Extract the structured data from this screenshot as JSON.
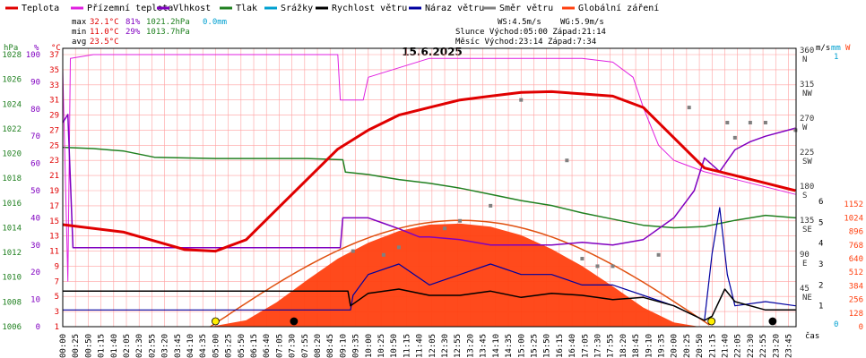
{
  "chart_data": {
    "type": "line",
    "title": "15.6.2025",
    "xlabel": "čas",
    "legend": [
      {
        "label": "Teplota",
        "color": "#e00000"
      },
      {
        "label": "Přízemní teplota",
        "color": "#e020e0"
      },
      {
        "label": "Vlhkost",
        "color": "#8000c0"
      },
      {
        "label": "Tlak",
        "color": "#208020"
      },
      {
        "label": "Srážky",
        "color": "#00a0d0"
      },
      {
        "label": "Rychlost větru",
        "color": "#000000"
      },
      {
        "label": "Náraz větru",
        "color": "#0000a0"
      },
      {
        "label": "Směr větru",
        "color": "#808080"
      },
      {
        "label": "Globální záření",
        "color": "#ff4010"
      }
    ],
    "stats": {
      "max_label": "max",
      "min_label": "min",
      "avg_label": "avg",
      "max_temp": "32.1°C",
      "max_hum": "81%",
      "max_press": "1021.2hPa",
      "max_rain": "0.0mm",
      "min_temp": "11.0°C",
      "min_hum": "29%",
      "min_press": "1013.7hPa",
      "avg_temp": "23.5°C"
    },
    "info": {
      "ws": "WS:4.5m/s",
      "wg": "WG:5.9m/s",
      "sun": "Slunce Východ:05:00  Západ:21:14",
      "moon": "Měsíc  Východ:23:14  Západ:7:34"
    },
    "axes_labels": {
      "hpa": "hPa",
      "pct": "%",
      "degc": "°C",
      "ms": "m/s",
      "mm": "mm",
      "w": "W"
    },
    "pressure_ticks": [
      "1006",
      "1008",
      "1010",
      "1012",
      "1014",
      "1016",
      "1018",
      "1020",
      "1022",
      "1024",
      "1026",
      "1028"
    ],
    "percent_ticks": [
      "0",
      "10",
      "20",
      "30",
      "40",
      "50",
      "60",
      "70",
      "80",
      "90",
      "100"
    ],
    "temp_ticks": [
      "1",
      "3",
      "5",
      "7",
      "9",
      "11",
      "13",
      "15",
      "17",
      "19",
      "21",
      "23",
      "25",
      "27",
      "29",
      "31",
      "33",
      "35",
      "37"
    ],
    "dir_ticks": [
      {
        "deg": "45",
        "dir": "NE"
      },
      {
        "deg": "90",
        "dir": "E"
      },
      {
        "deg": "135",
        "dir": "SE"
      },
      {
        "deg": "180",
        "dir": "S"
      },
      {
        "deg": "225",
        "dir": "SW"
      },
      {
        "deg": "270",
        "dir": "W"
      },
      {
        "deg": "315",
        "dir": "NW"
      },
      {
        "deg": "360",
        "dir": "N"
      }
    ],
    "wind_ticks": [
      "1",
      "2",
      "3",
      "4",
      "5",
      "6"
    ],
    "rain_ticks": [
      "0",
      "1"
    ],
    "rad_ticks": [
      "0",
      "128",
      "256",
      "384",
      "512",
      "640",
      "768",
      "896",
      "1024",
      "1152"
    ],
    "x_ticks": [
      "00:00",
      "00:25",
      "00:50",
      "01:15",
      "01:40",
      "02:05",
      "02:30",
      "02:55",
      "03:20",
      "03:45",
      "04:10",
      "04:35",
      "05:00",
      "05:25",
      "05:50",
      "06:15",
      "06:40",
      "07:05",
      "07:30",
      "07:55",
      "08:20",
      "08:45",
      "09:10",
      "09:35",
      "10:00",
      "10:25",
      "10:50",
      "11:15",
      "11:40",
      "12:05",
      "12:30",
      "12:55",
      "13:20",
      "13:45",
      "14:10",
      "14:35",
      "15:00",
      "15:25",
      "15:50",
      "16:15",
      "16:40",
      "17:05",
      "17:30",
      "17:55",
      "18:20",
      "18:45",
      "19:10",
      "19:35",
      "20:00",
      "20:25",
      "20:50",
      "21:15",
      "21:40",
      "22:05",
      "22:30",
      "22:55",
      "23:20",
      "23:45"
    ],
    "xlim": [
      "00:00",
      "24:00"
    ],
    "temperature": {
      "unit": "°C",
      "x": [
        "00:00",
        "02:00",
        "04:00",
        "05:00",
        "06:00",
        "07:00",
        "08:00",
        "09:00",
        "10:00",
        "11:00",
        "12:00",
        "13:00",
        "14:00",
        "15:00",
        "16:00",
        "17:00",
        "18:00",
        "19:00",
        "20:00",
        "20:30",
        "21:00",
        "22:00",
        "23:00",
        "23:59"
      ],
      "y": [
        14.5,
        13.5,
        11.2,
        11.0,
        12.5,
        16.5,
        20.5,
        24.5,
        27.0,
        29.0,
        30.0,
        31.0,
        31.5,
        32.0,
        32.1,
        31.8,
        31.5,
        30.0,
        26.0,
        24.0,
        22.0,
        21.0,
        20.0,
        19.0
      ]
    },
    "ground_temperature": {
      "unit": "°C",
      "x": [
        "00:00",
        "00:10",
        "00:15",
        "01:00",
        "08:00",
        "09:00",
        "09:05",
        "09:50",
        "10:00",
        "12:00",
        "14:00",
        "17:00",
        "18:00",
        "18:40",
        "19:00",
        "19:30",
        "20:00",
        "21:00",
        "22:00",
        "23:00",
        "23:59"
      ],
      "y": [
        35,
        7,
        36.5,
        37,
        37,
        37,
        31,
        31,
        34,
        36.5,
        36.5,
        36.5,
        36,
        34,
        30,
        25,
        23,
        21.5,
        20.5,
        19.5,
        18.5
      ]
    },
    "humidity": {
      "unit": "%",
      "x": [
        "00:00",
        "00:10",
        "00:20",
        "01:00",
        "04:00",
        "08:00",
        "09:05",
        "09:10",
        "10:00",
        "10:30",
        "11:00",
        "11:40",
        "12:00",
        "13:00",
        "14:00",
        "15:00",
        "16:00",
        "17:00",
        "18:00",
        "19:00",
        "20:00",
        "20:40",
        "21:00",
        "21:30",
        "22:00",
        "22:30",
        "23:00",
        "23:59"
      ],
      "y": [
        75,
        78,
        29,
        29,
        29,
        29,
        29,
        40,
        40,
        38,
        36,
        33,
        33,
        32,
        30,
        30,
        30,
        31,
        30,
        32,
        40,
        50,
        62,
        57,
        65,
        68,
        70,
        73
      ]
    },
    "pressure": {
      "unit": "hPa",
      "x": [
        "00:00",
        "01:00",
        "02:00",
        "03:00",
        "05:00",
        "08:00",
        "09:10",
        "09:15",
        "10:00",
        "11:00",
        "12:00",
        "13:00",
        "14:00",
        "15:00",
        "16:00",
        "17:00",
        "18:00",
        "19:00",
        "20:00",
        "21:00",
        "22:00",
        "23:00",
        "23:59"
      ],
      "y": [
        1020.5,
        1020.4,
        1020.2,
        1019.7,
        1019.6,
        1019.6,
        1019.5,
        1018.5,
        1018.3,
        1017.9,
        1017.6,
        1017.2,
        1016.7,
        1016.2,
        1015.8,
        1015.2,
        1014.7,
        1014.2,
        1014.0,
        1014.1,
        1014.6,
        1015.0,
        1014.8
      ]
    },
    "rain_mm": 0.0,
    "wind_speed": {
      "unit": "m/s",
      "x": [
        "00:00",
        "09:20",
        "09:25",
        "10:00",
        "11:00",
        "12:00",
        "13:00",
        "14:00",
        "15:00",
        "16:00",
        "17:00",
        "18:00",
        "19:00",
        "20:00",
        "21:00",
        "21:15",
        "21:40",
        "22:00",
        "23:00",
        "23:59"
      ],
      "y": [
        1.7,
        1.7,
        1.0,
        1.6,
        1.8,
        1.5,
        1.5,
        1.7,
        1.4,
        1.6,
        1.5,
        1.3,
        1.4,
        1.0,
        0.3,
        0.5,
        1.8,
        1.2,
        0.8,
        0.8
      ]
    },
    "wind_gust": {
      "unit": "m/s",
      "x": [
        "00:00",
        "09:25",
        "09:30",
        "10:00",
        "11:00",
        "12:00",
        "13:00",
        "14:00",
        "15:00",
        "16:00",
        "17:00",
        "18:00",
        "19:00",
        "20:00",
        "21:00",
        "21:15",
        "21:30",
        "21:45",
        "22:00",
        "23:00",
        "23:59"
      ],
      "y": [
        0.8,
        0.8,
        1.5,
        2.5,
        3.0,
        2.0,
        2.5,
        3.0,
        2.5,
        2.5,
        2.0,
        2.0,
        1.5,
        1.0,
        0.3,
        3.5,
        5.7,
        2.5,
        1.0,
        1.2,
        1.0
      ]
    },
    "wind_direction": {
      "unit": "°",
      "x": [
        "09:30",
        "10:30",
        "11:00",
        "12:30",
        "13:00",
        "14:00",
        "15:00",
        "16:30",
        "17:00",
        "17:30",
        "18:00",
        "19:30",
        "20:30",
        "21:45",
        "22:00",
        "22:30",
        "23:00",
        "23:59"
      ],
      "y": [
        100,
        95,
        105,
        130,
        140,
        160,
        300,
        220,
        90,
        80,
        80,
        95,
        290,
        270,
        250,
        270,
        270,
        260
      ]
    },
    "global_radiation": {
      "unit": "W/m²",
      "x": [
        "04:50",
        "06:00",
        "07:00",
        "08:00",
        "09:00",
        "10:00",
        "11:00",
        "12:00",
        "13:00",
        "14:00",
        "15:00",
        "16:00",
        "17:00",
        "18:00",
        "19:00",
        "20:00",
        "20:50"
      ],
      "y": [
        0,
        60,
        230,
        440,
        640,
        790,
        900,
        960,
        970,
        940,
        860,
        730,
        570,
        380,
        180,
        40,
        0
      ]
    },
    "astro_markers": [
      {
        "kind": "sunrise",
        "time": "05:00"
      },
      {
        "kind": "moonset",
        "time": "07:34"
      },
      {
        "kind": "sunset",
        "time": "21:14"
      },
      {
        "kind": "moonrise",
        "time": "23:14"
      }
    ]
  },
  "colors": {
    "temperature": "#e00000",
    "ground": "#e020e0",
    "humidity": "#8000c0",
    "pressure": "#208020",
    "rain": "#00a0d0",
    "wind": "#000000",
    "gust": "#0000a0",
    "direction": "#808080",
    "radiation": "#ff4010",
    "grid": "#ffa0a0",
    "frame": "#000000"
  }
}
